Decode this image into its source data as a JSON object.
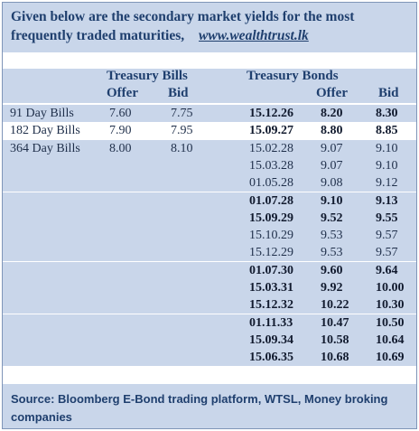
{
  "title_line1": "Given below are the secondary market yields for the most",
  "title_line2": "frequently traded maturities,",
  "title_link": "www.wealthtrust.lk",
  "tbills_header": "Treasury Bills",
  "tbonds_header": "Treasury Bonds",
  "col_offer": "Offer",
  "col_bid": "Bid",
  "bills": [
    {
      "name": "91 Day Bills",
      "offer": "7.60",
      "bid": "7.75"
    },
    {
      "name": "182 Day Bills",
      "offer": "7.90",
      "bid": "7.95"
    },
    {
      "name": "364 Day Bills",
      "offer": "8.00",
      "bid": "8.10"
    }
  ],
  "bonds": [
    {
      "maturity": "15.12.26",
      "offer": "8.20",
      "bid": "8.30",
      "bold": true
    },
    {
      "maturity": "15.09.27",
      "offer": "8.80",
      "bid": "8.85",
      "bold": true
    },
    {
      "maturity": "15.02.28",
      "offer": "9.07",
      "bid": "9.10",
      "bold": false
    },
    {
      "maturity": "15.03.28",
      "offer": "9.07",
      "bid": "9.10",
      "bold": false
    },
    {
      "maturity": "01.05.28",
      "offer": "9.08",
      "bid": "9.12",
      "bold": false
    },
    {
      "maturity": "01.07.28",
      "offer": "9.10",
      "bid": "9.13",
      "bold": true
    },
    {
      "maturity": "15.09.29",
      "offer": "9.52",
      "bid": "9.55",
      "bold": true
    },
    {
      "maturity": "15.10.29",
      "offer": "9.53",
      "bid": "9.57",
      "bold": false
    },
    {
      "maturity": "15.12.29",
      "offer": "9.53",
      "bid": "9.57",
      "bold": false
    },
    {
      "maturity": "01.07.30",
      "offer": "9.60",
      "bid": "9.64",
      "bold": true
    },
    {
      "maturity": "15.03.31",
      "offer": "9.92",
      "bid": "10.00",
      "bold": true
    },
    {
      "maturity": "15.12.32",
      "offer": "10.22",
      "bid": "10.30",
      "bold": true
    },
    {
      "maturity": "01.11.33",
      "offer": "10.47",
      "bid": "10.50",
      "bold": true
    },
    {
      "maturity": "15.09.34",
      "offer": "10.58",
      "bid": "10.64",
      "bold": true
    },
    {
      "maturity": "15.06.35",
      "offer": "10.68",
      "bid": "10.69",
      "bold": true
    }
  ],
  "source": "Source: Bloomberg E-Bond trading platform, WTSL, Money broking companies"
}
